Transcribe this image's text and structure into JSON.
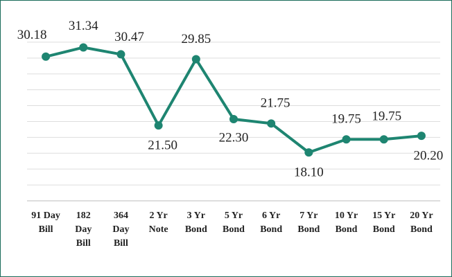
{
  "chart_data": {
    "type": "line",
    "categories": [
      "91 Day Bill",
      "182 Day Bill",
      "364 Day Bill",
      "2 Yr Note",
      "3 Yr Bond",
      "5 Yr Bond",
      "6 Yr Bond",
      "7 Yr Bond",
      "10 Yr Bond",
      "15 Yr Bond",
      "20 Yr Bond"
    ],
    "series": [
      {
        "color": "#1e8571",
        "values": [
          30.18,
          31.34,
          30.47,
          21.5,
          29.85,
          22.3,
          21.75,
          18.1,
          19.75,
          19.75,
          20.2
        ],
        "value_labels": [
          "30.18",
          "31.34",
          "30.47",
          "21.50",
          "29.85",
          "22.30",
          "21.75",
          "18.10",
          "19.75",
          "19.75",
          "20.20"
        ]
      }
    ],
    "ylim": [
      12,
      34
    ],
    "yticks": [
      12,
      14,
      16,
      18,
      20,
      22,
      24,
      26,
      28,
      30,
      32
    ],
    "grid": true
  }
}
